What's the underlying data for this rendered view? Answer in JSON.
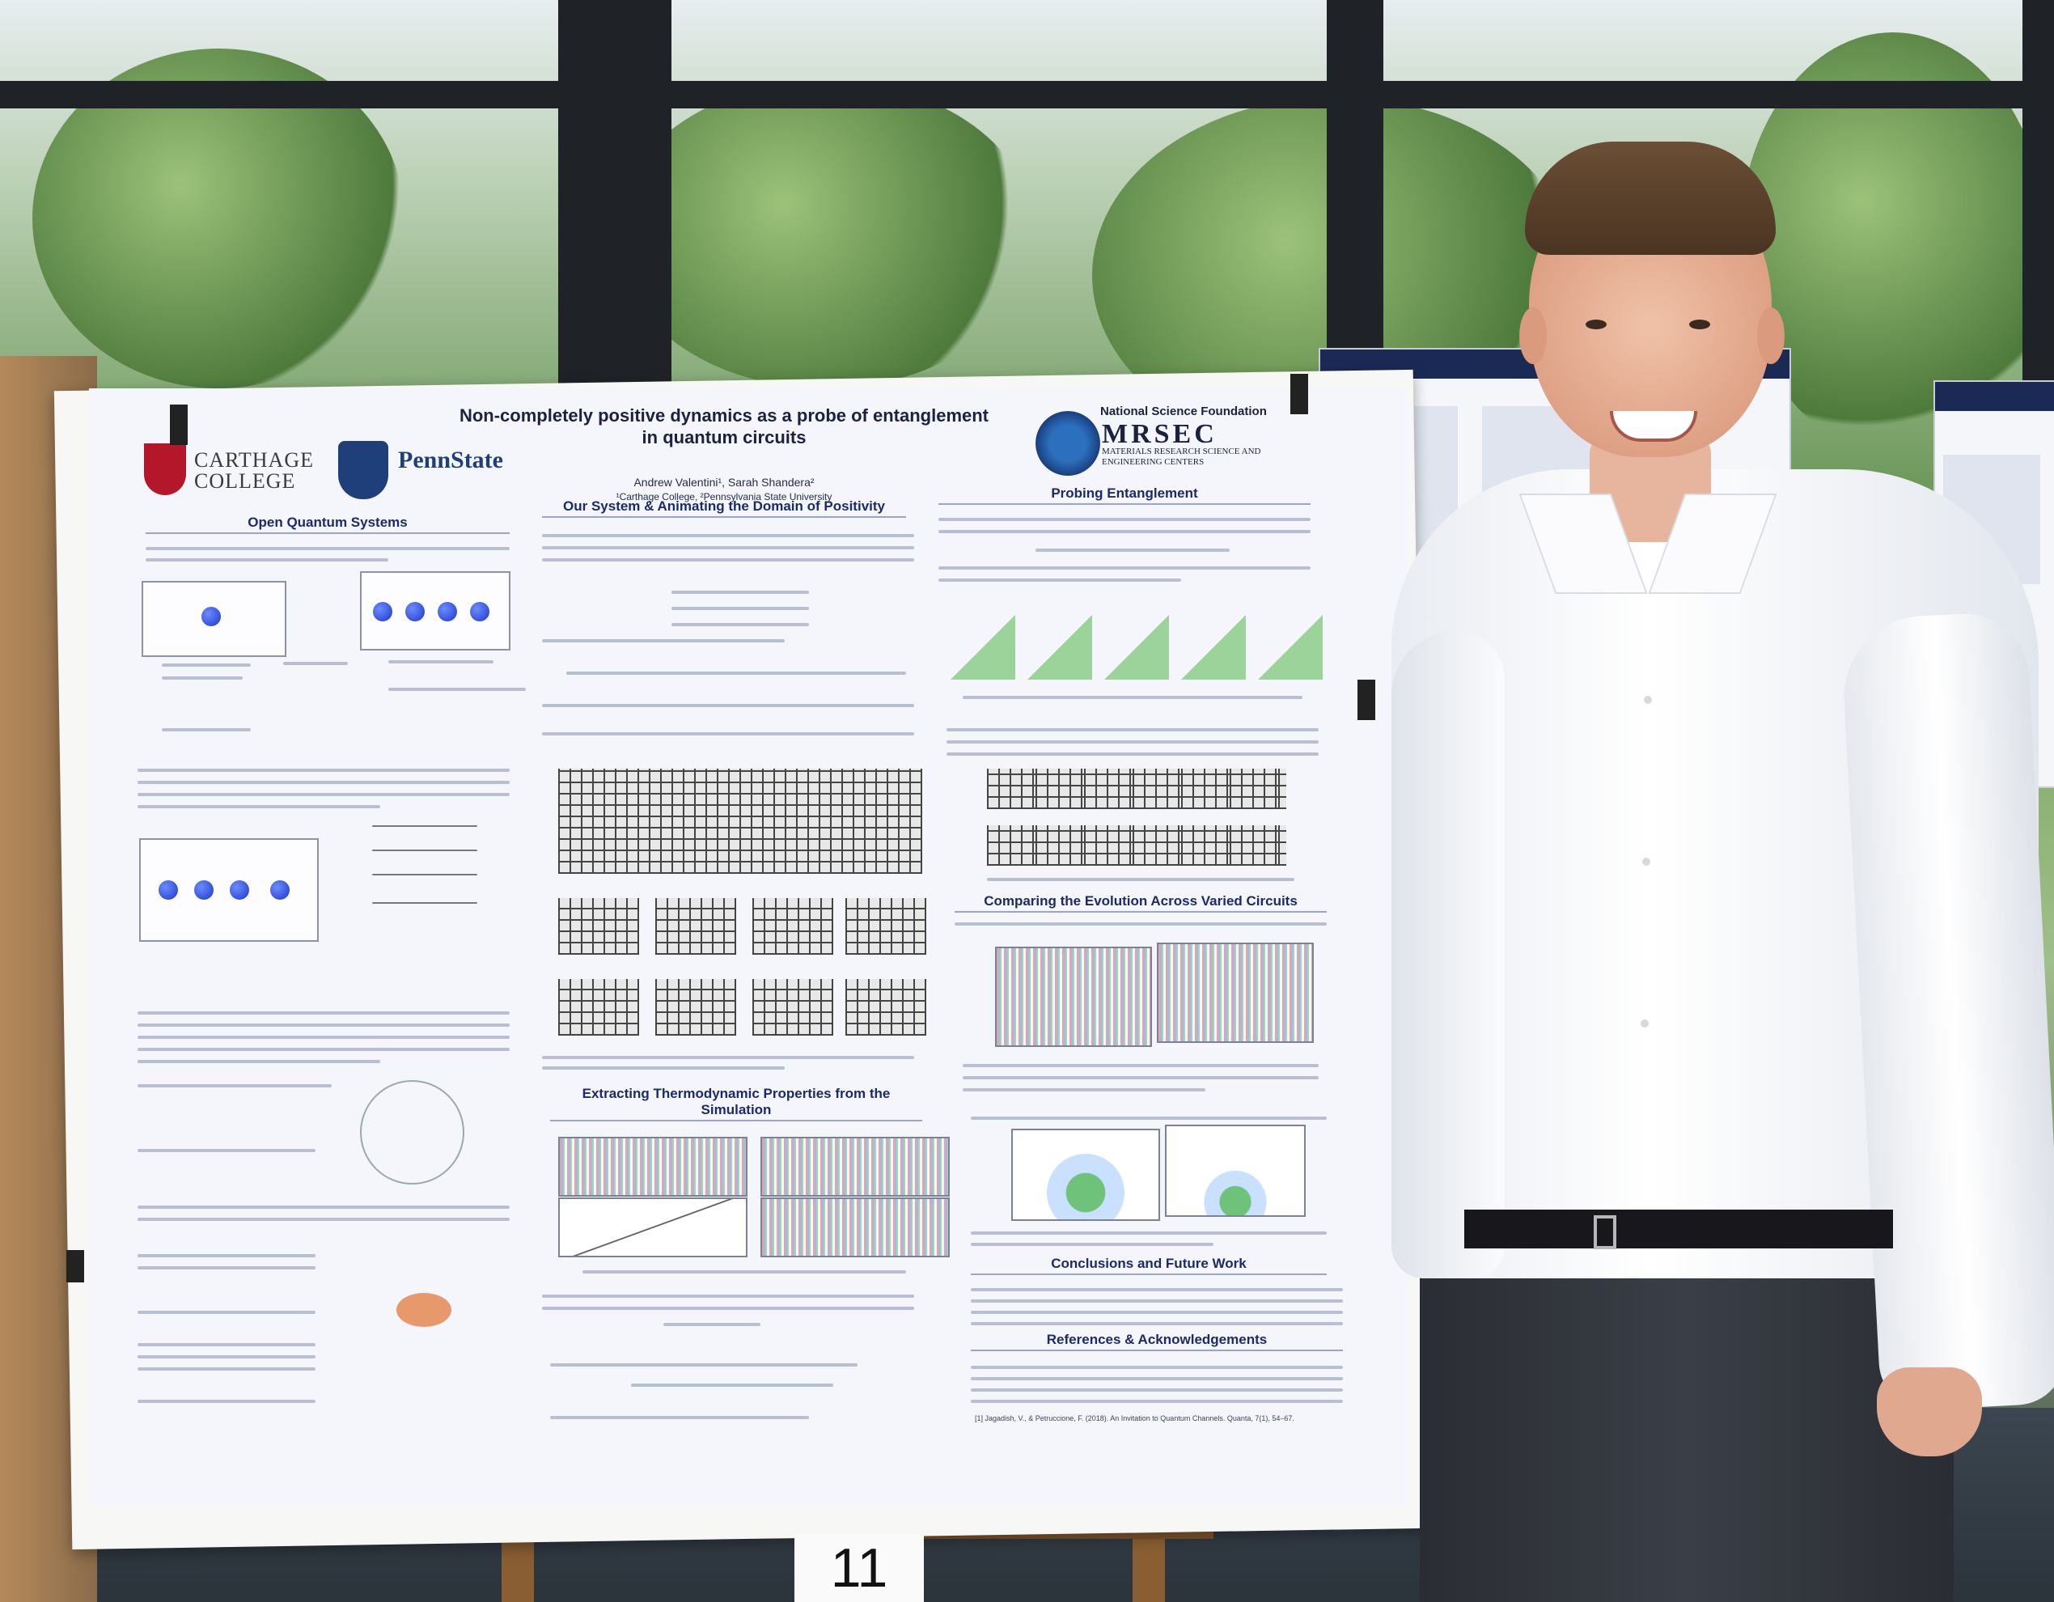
{
  "poster": {
    "title": "Non-completely positive dynamics as a probe of entanglement in quantum circuits",
    "authors": "Andrew Valentini¹, Sarah Shandera²",
    "affiliations": "¹Carthage College, ²Pennsylvania State University",
    "logos": {
      "carthage": "CARTHAGE COLLEGE",
      "pennstate": "PennState",
      "nsf": "National Science Foundation",
      "mrsec": "MRSEC",
      "mrsec_sub": "MATERIALS RESEARCH SCIENCE AND ENGINEERING CENTERS"
    },
    "sections": {
      "oqs": "Open Quantum Systems",
      "system": "Our System & Animating the Domain of Positivity",
      "probing": "Probing Entanglement",
      "thermo": "Extracting Thermodynamic Properties from the Simulation",
      "comparing": "Comparing the Evolution Across Varied Circuits",
      "conclusions": "Conclusions and Future Work",
      "references": "References & Acknowledgements"
    },
    "reference_1": "[1] Jagadish, V., & Petruccione, F. (2018). An Invitation to Quantum Channels. Quanta, 7(1), 54–67."
  },
  "placard_number": "11",
  "colors": {
    "poster_bg": "#f5f6fb",
    "heading": "#1b2a6b",
    "penn_blue": "#1e3f7a",
    "carthage_red": "#b5172a",
    "shirt": "#ffffff"
  }
}
